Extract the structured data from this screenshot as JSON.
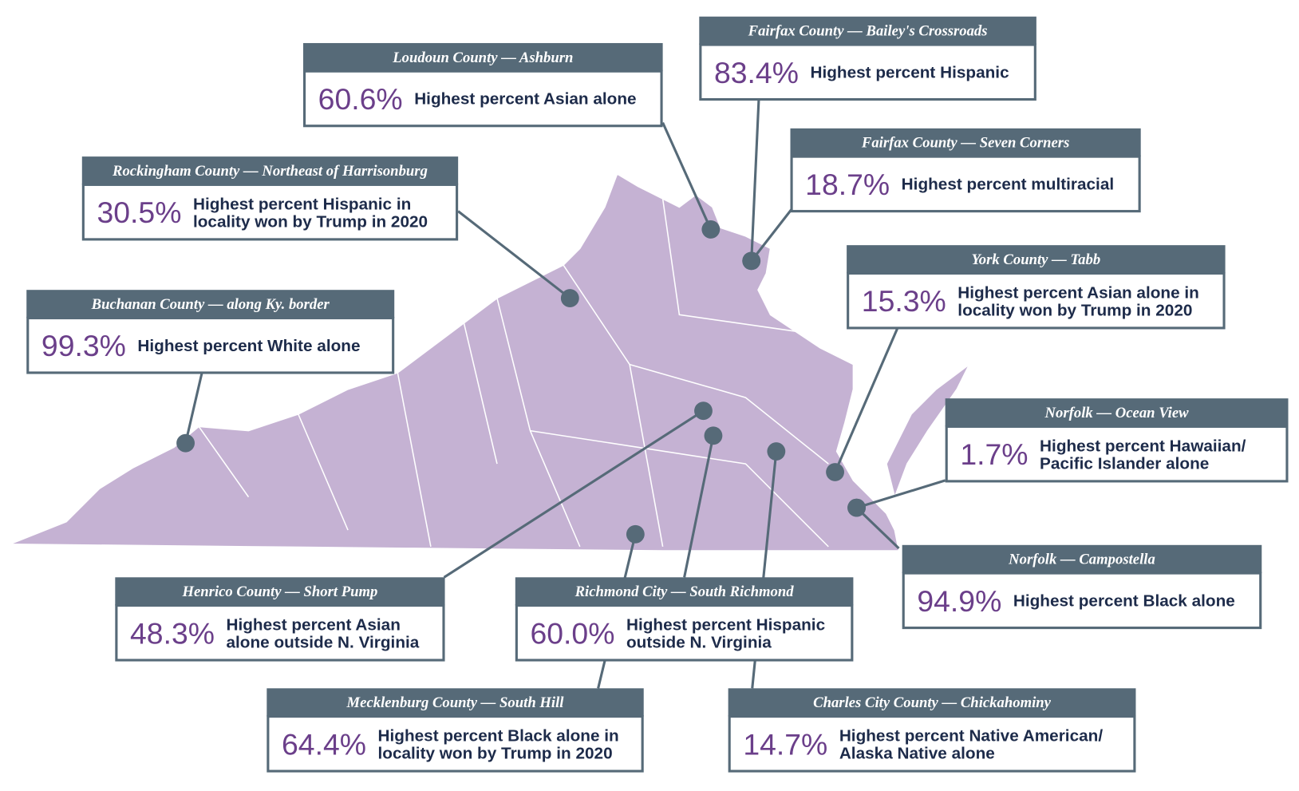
{
  "callouts": [
    {
      "place": "Loudoun County — Ashburn",
      "value": "60.6%",
      "lines": [
        "Highest percent Asian alone"
      ]
    },
    {
      "place": "Fairfax County — Bailey's Crossroads",
      "value": "83.4%",
      "lines": [
        "Highest percent Hispanic"
      ]
    },
    {
      "place": "Fairfax County — Seven Corners",
      "value": "18.7%",
      "lines": [
        "Highest percent multiracial"
      ]
    },
    {
      "place": "Rockingham County — Northeast of Harrisonburg",
      "value": "30.5%",
      "lines": [
        "Highest percent Hispanic in",
        "locality won by Trump in 2020"
      ]
    },
    {
      "place": "Buchanan County — along Ky. border",
      "value": "99.3%",
      "lines": [
        "Highest percent White alone"
      ]
    },
    {
      "place": "York County — Tabb",
      "value": "15.3%",
      "lines": [
        "Highest percent Asian alone in",
        "locality won by Trump in 2020"
      ]
    },
    {
      "place": "Norfolk — Ocean View",
      "value": "1.7%",
      "lines": [
        "Highest percent Hawaiian/",
        "Pacific Islander alone"
      ]
    },
    {
      "place": "Norfolk — Campostella",
      "value": "94.9%",
      "lines": [
        "Highest percent Black alone"
      ]
    },
    {
      "place": "Henrico County — Short Pump",
      "value": "48.3%",
      "lines": [
        "Highest percent Asian",
        "alone outside N. Virginia"
      ]
    },
    {
      "place": "Richmond City — South Richmond",
      "value": "60.0%",
      "lines": [
        "Highest percent Hispanic",
        "outside N. Virginia"
      ]
    },
    {
      "place": "Mecklenburg County — South Hill",
      "value": "64.4%",
      "lines": [
        "Highest percent Black alone in",
        "locality won by Trump in 2020"
      ]
    },
    {
      "place": "Charles City County — Chickahominy",
      "value": "14.7%",
      "lines": [
        "Highest percent Native American/",
        "Alaska Native alone"
      ]
    }
  ]
}
